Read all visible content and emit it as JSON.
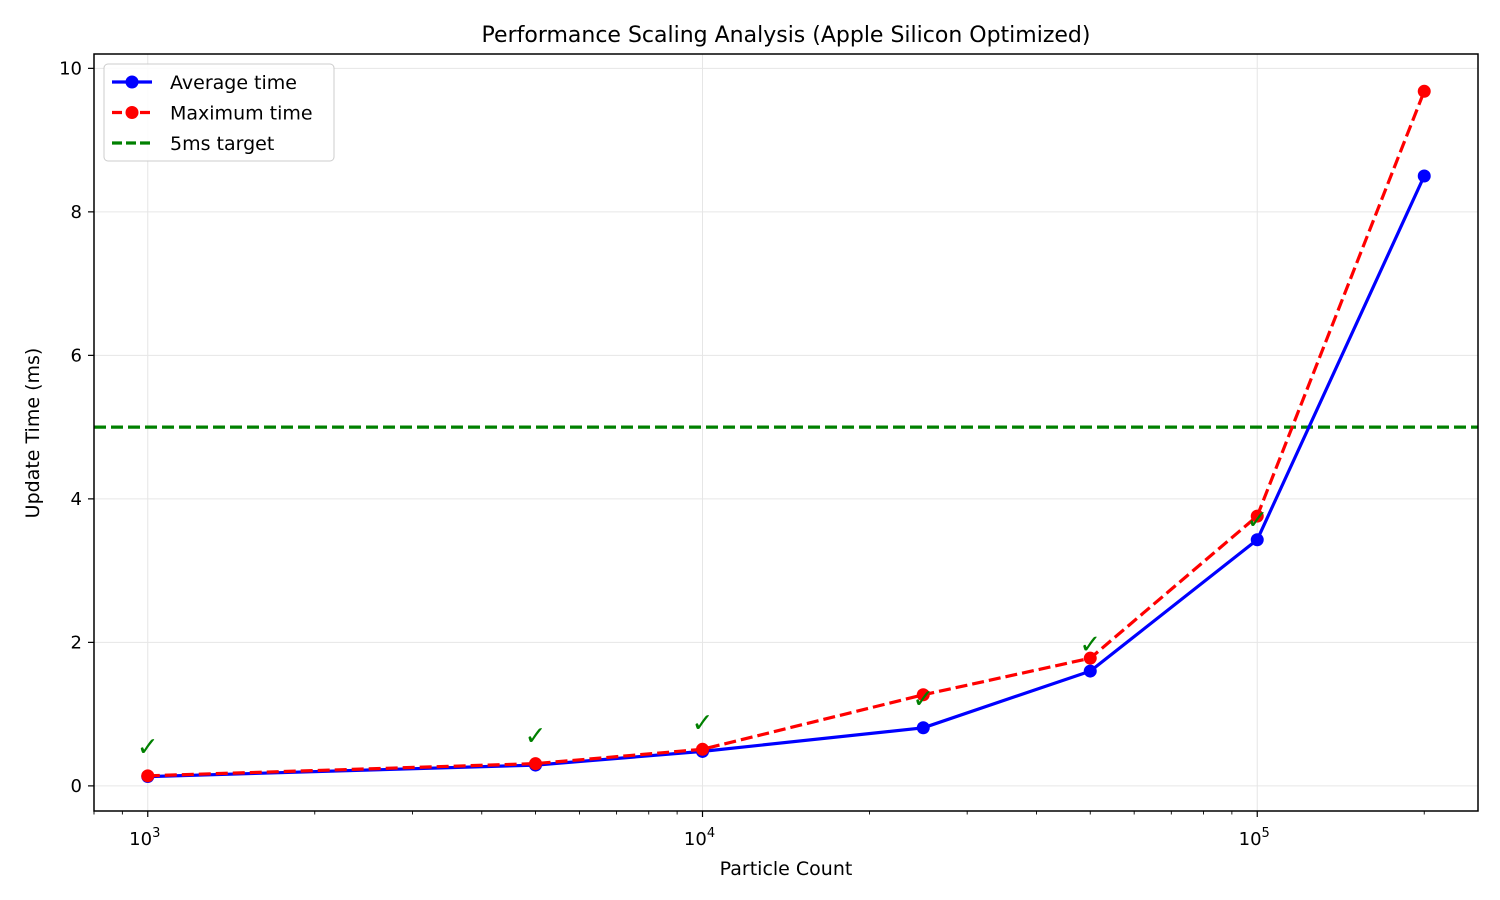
{
  "chart_data": {
    "type": "line",
    "title": "Performance Scaling Analysis (Apple Silicon Optimized)",
    "xlabel": "Particle Count",
    "ylabel": "Update Time (ms)",
    "x_scale": "log",
    "xlim": [
      800,
      250000
    ],
    "ylim": [
      -0.35,
      10.2
    ],
    "x": [
      1000,
      5000,
      10000,
      25000,
      50000,
      100000,
      200000
    ],
    "x_ticks": [
      {
        "value": 1000,
        "base": "10",
        "exp": "3"
      },
      {
        "value": 10000,
        "base": "10",
        "exp": "4"
      },
      {
        "value": 100000,
        "base": "10",
        "exp": "5"
      }
    ],
    "y_ticks": [
      0,
      2,
      4,
      6,
      8,
      10
    ],
    "grid": true,
    "legend_position": "top-left",
    "series": [
      {
        "name": "Average time",
        "values": [
          0.13,
          0.29,
          0.48,
          0.81,
          1.6,
          3.43,
          8.5
        ],
        "color": "#0000ff",
        "style": "solid",
        "marker": "circle"
      },
      {
        "name": "Maximum time",
        "values": [
          0.14,
          0.31,
          0.51,
          1.27,
          1.78,
          3.76,
          9.68
        ],
        "color": "#ff0000",
        "style": "dashed",
        "marker": "circle"
      }
    ],
    "reference_line": {
      "name": "5ms target",
      "value": 5,
      "color": "#008000",
      "style": "dashed"
    },
    "annotations": {
      "symbol": "✓",
      "color": "#008000",
      "points": [
        {
          "x": 1000,
          "y": 0.55
        },
        {
          "x": 5000,
          "y": 0.7
        },
        {
          "x": 10000,
          "y": 0.88
        },
        {
          "x": 25000,
          "y": 1.22
        },
        {
          "x": 50000,
          "y": 1.98
        },
        {
          "x": 100000,
          "y": 3.71
        }
      ]
    }
  }
}
